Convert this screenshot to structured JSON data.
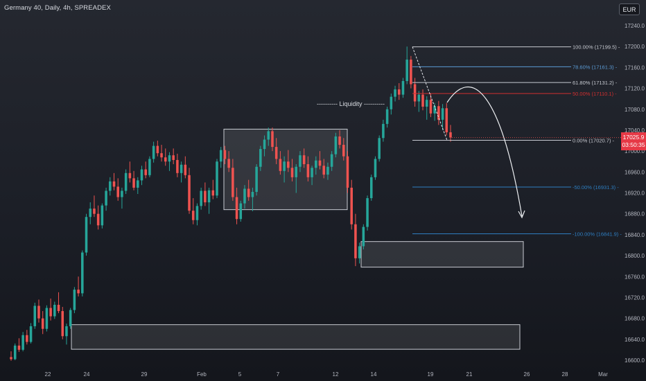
{
  "header": {
    "title": "Germany 40, Daily, 4h, SPREADEX",
    "currency_label": "EUR"
  },
  "price_tag": {
    "price": "17025.9",
    "countdown": "03:50:35"
  },
  "colors": {
    "up": "#26a69a",
    "down": "#ef5350",
    "fib_gray": "#c7cad1",
    "fib_blue": "#5b9bd5",
    "fib_red": "#d32f2f",
    "ext_blue": "#2e7fc2",
    "axis_text": "#b2b5be"
  },
  "chart_data": {
    "type": "candlestick",
    "title": "Germany 40, Daily, 4h, SPREADEX",
    "ylim": [
      16590,
      17260
    ],
    "y_ticks": [
      17240.0,
      17200.0,
      17160.0,
      17120.0,
      17080.0,
      17040.0,
      17000.0,
      16960.0,
      16920.0,
      16880.0,
      16840.0,
      16800.0,
      16760.0,
      16720.0,
      16680.0,
      16640.0,
      16600.0
    ],
    "x_ticks": [
      "22",
      "24",
      "29",
      "Feb",
      "5",
      "7",
      "12",
      "14",
      "19",
      "21",
      "26",
      "28",
      "Mar"
    ],
    "last_price": 17025.9,
    "fib_levels": [
      {
        "label": "100.00% (17199.5)",
        "price": 17199.5,
        "color": "gray"
      },
      {
        "label": "78.60% (17161.3)",
        "price": 17161.3,
        "color": "blue"
      },
      {
        "label": "61.80% (17131.2)",
        "price": 17131.2,
        "color": "gray"
      },
      {
        "label": "50.00% (17110.1)",
        "price": 17110.1,
        "color": "red"
      },
      {
        "label": "0.00% (17020.7)",
        "price": 17020.7,
        "color": "gray"
      },
      {
        "label": "-50.00% (16931.3)",
        "price": 16931.3,
        "color": "ext"
      },
      {
        "label": "-100.00% (16841.9)",
        "price": 16841.9,
        "color": "ext"
      }
    ],
    "annotations": [
      {
        "type": "text",
        "text": "---------- Liquidity ----------"
      },
      {
        "type": "zone",
        "name": "liquidity-range",
        "y": [
          16888,
          17042
        ]
      },
      {
        "type": "zone",
        "name": "demand-zone-upper",
        "y": [
          16778,
          16827
        ]
      },
      {
        "type": "zone",
        "name": "demand-zone-lower",
        "y": [
          16621,
          16668
        ]
      },
      {
        "type": "arrow",
        "direction": "down"
      }
    ],
    "candles": [
      [
        16606,
        16617,
        16599,
        16602
      ],
      [
        16602,
        16632,
        16600,
        16628
      ],
      [
        16628,
        16642,
        16616,
        16620
      ],
      [
        16620,
        16654,
        16617,
        16648
      ],
      [
        16648,
        16658,
        16630,
        16635
      ],
      [
        16635,
        16671,
        16632,
        16665
      ],
      [
        16665,
        16710,
        16660,
        16704
      ],
      [
        16704,
        16716,
        16672,
        16680
      ],
      [
        16680,
        16694,
        16650,
        16660
      ],
      [
        16660,
        16705,
        16655,
        16700
      ],
      [
        16700,
        16718,
        16676,
        16684
      ],
      [
        16684,
        16712,
        16679,
        16706
      ],
      [
        16706,
        16730,
        16690,
        16694
      ],
      [
        16694,
        16702,
        16640,
        16646
      ],
      [
        16646,
        16670,
        16630,
        16665
      ],
      [
        16665,
        16700,
        16660,
        16696
      ],
      [
        16696,
        16740,
        16690,
        16735
      ],
      [
        16735,
        16760,
        16722,
        16728
      ],
      [
        16728,
        16810,
        16722,
        16806
      ],
      [
        16806,
        16880,
        16800,
        16874
      ],
      [
        16874,
        16902,
        16860,
        16890
      ],
      [
        16890,
        16915,
        16874,
        16880
      ],
      [
        16880,
        16896,
        16850,
        16858
      ],
      [
        16858,
        16900,
        16852,
        16896
      ],
      [
        16896,
        16930,
        16886,
        16924
      ],
      [
        16924,
        16950,
        16915,
        16942
      ],
      [
        16942,
        16958,
        16925,
        16932
      ],
      [
        16932,
        16948,
        16905,
        16912
      ],
      [
        16912,
        16930,
        16890,
        16924
      ],
      [
        16924,
        16965,
        16918,
        16958
      ],
      [
        16958,
        16980,
        16940,
        16948
      ],
      [
        16948,
        16962,
        16925,
        16930
      ],
      [
        16930,
        16950,
        16918,
        16944
      ],
      [
        16944,
        16972,
        16935,
        16965
      ],
      [
        16965,
        16980,
        16948,
        16954
      ],
      [
        16954,
        16990,
        16950,
        16985
      ],
      [
        16985,
        17018,
        16978,
        17010
      ],
      [
        17010,
        17020,
        16990,
        16996
      ],
      [
        16996,
        17012,
        16980,
        16988
      ],
      [
        16988,
        17005,
        16972,
        16980
      ],
      [
        16980,
        16998,
        16962,
        16992
      ],
      [
        16992,
        17005,
        16975,
        16983
      ],
      [
        16983,
        16995,
        16950,
        16958
      ],
      [
        16958,
        16980,
        16940,
        16974
      ],
      [
        16974,
        16990,
        16948,
        16954
      ],
      [
        16954,
        16968,
        16880,
        16886
      ],
      [
        16886,
        16910,
        16860,
        16868
      ],
      [
        16868,
        16900,
        16858,
        16895
      ],
      [
        16895,
        16930,
        16888,
        16924
      ],
      [
        16924,
        16940,
        16895,
        16902
      ],
      [
        16902,
        16930,
        16880,
        16925
      ],
      [
        16925,
        16945,
        16908,
        16915
      ],
      [
        16915,
        16985,
        16910,
        16980
      ],
      [
        16980,
        17008,
        16968,
        17002
      ],
      [
        17002,
        17010,
        16975,
        16985
      ],
      [
        16985,
        17000,
        16960,
        16968
      ],
      [
        16968,
        16985,
        16905,
        16912
      ],
      [
        16912,
        16930,
        16860,
        16870
      ],
      [
        16870,
        16905,
        16865,
        16900
      ],
      [
        16900,
        16935,
        16890,
        16928
      ],
      [
        16928,
        16945,
        16905,
        16912
      ],
      [
        16912,
        16930,
        16885,
        16922
      ],
      [
        16922,
        16975,
        16915,
        16970
      ],
      [
        16970,
        17010,
        16962,
        17004
      ],
      [
        17004,
        17030,
        16990,
        17022
      ],
      [
        17022,
        17045,
        17010,
        17038
      ],
      [
        17038,
        17045,
        17000,
        17008
      ],
      [
        17008,
        17025,
        16975,
        16985
      ],
      [
        16985,
        17000,
        16955,
        16962
      ],
      [
        16962,
        16990,
        16940,
        16980
      ],
      [
        16980,
        17002,
        16960,
        16968
      ],
      [
        16968,
        16985,
        16942,
        16950
      ],
      [
        16950,
        16975,
        16920,
        16970
      ],
      [
        16970,
        17000,
        16960,
        16992
      ],
      [
        16992,
        17005,
        16968,
        16975
      ],
      [
        16975,
        16990,
        16942,
        16950
      ],
      [
        16950,
        16972,
        16935,
        16968
      ],
      [
        16968,
        16990,
        16955,
        16982
      ],
      [
        16982,
        17000,
        16965,
        16972
      ],
      [
        16972,
        16985,
        16948,
        16955
      ],
      [
        16955,
        16978,
        16945,
        16970
      ],
      [
        16970,
        17000,
        16962,
        16994
      ],
      [
        16994,
        17035,
        16988,
        17028
      ],
      [
        17028,
        17040,
        17005,
        17012
      ],
      [
        17012,
        17025,
        16982,
        16990
      ],
      [
        16990,
        17000,
        16920,
        16930
      ],
      [
        16930,
        16945,
        16850,
        16860
      ],
      [
        16860,
        16880,
        16780,
        16795
      ],
      [
        16795,
        16825,
        16785,
        16818
      ],
      [
        16818,
        16860,
        16812,
        16855
      ],
      [
        16855,
        16915,
        16848,
        16910
      ],
      [
        16910,
        16955,
        16905,
        16950
      ],
      [
        16950,
        16990,
        16945,
        16985
      ],
      [
        16985,
        17030,
        16980,
        17025
      ],
      [
        17025,
        17060,
        17018,
        17052
      ],
      [
        17052,
        17085,
        17045,
        17080
      ],
      [
        17080,
        17110,
        17070,
        17104
      ],
      [
        17104,
        17125,
        17095,
        17118
      ],
      [
        17118,
        17130,
        17098,
        17108
      ],
      [
        17108,
        17140,
        17102,
        17134
      ],
      [
        17134,
        17200,
        17128,
        17175
      ],
      [
        17175,
        17182,
        17120,
        17128
      ],
      [
        17128,
        17140,
        17085,
        17095
      ],
      [
        17095,
        17115,
        17075,
        17108
      ],
      [
        17108,
        17118,
        17078,
        17085
      ],
      [
        17085,
        17105,
        17060,
        17098
      ],
      [
        17098,
        17110,
        17065,
        17072
      ],
      [
        17072,
        17092,
        17058,
        17086
      ],
      [
        17086,
        17096,
        17050,
        17060
      ],
      [
        17060,
        17090,
        17040,
        17082
      ],
      [
        17082,
        17092,
        17030,
        17036
      ],
      [
        17036,
        17050,
        17018,
        17026
      ]
    ]
  }
}
